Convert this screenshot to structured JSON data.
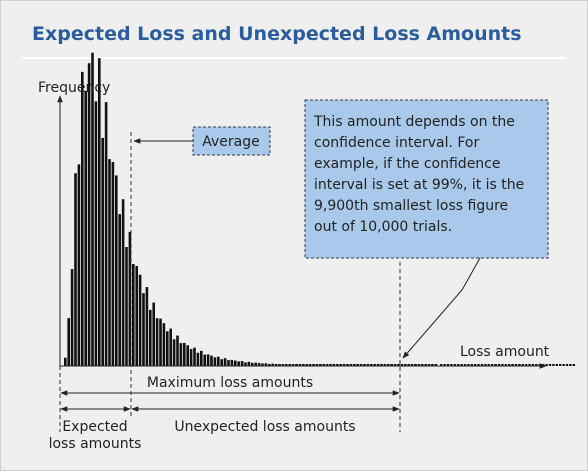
{
  "header": {
    "title": "Expected Loss and Unexpected Loss Amounts"
  },
  "axes": {
    "y_label": "Frequency",
    "x_label": "Loss amount"
  },
  "annotations": {
    "average": "Average",
    "note": [
      "This amount depends on the",
      "confidence interval.  For",
      "example, if the confidence",
      "interval is set at 99%, it is the",
      "9,900th smallest loss figure",
      "out of 10,000 trials."
    ]
  },
  "ranges": {
    "maximum": "Maximum loss amounts",
    "expected": [
      "Expected",
      "loss amounts"
    ],
    "unexpected": "Unexpected loss amounts"
  }
}
